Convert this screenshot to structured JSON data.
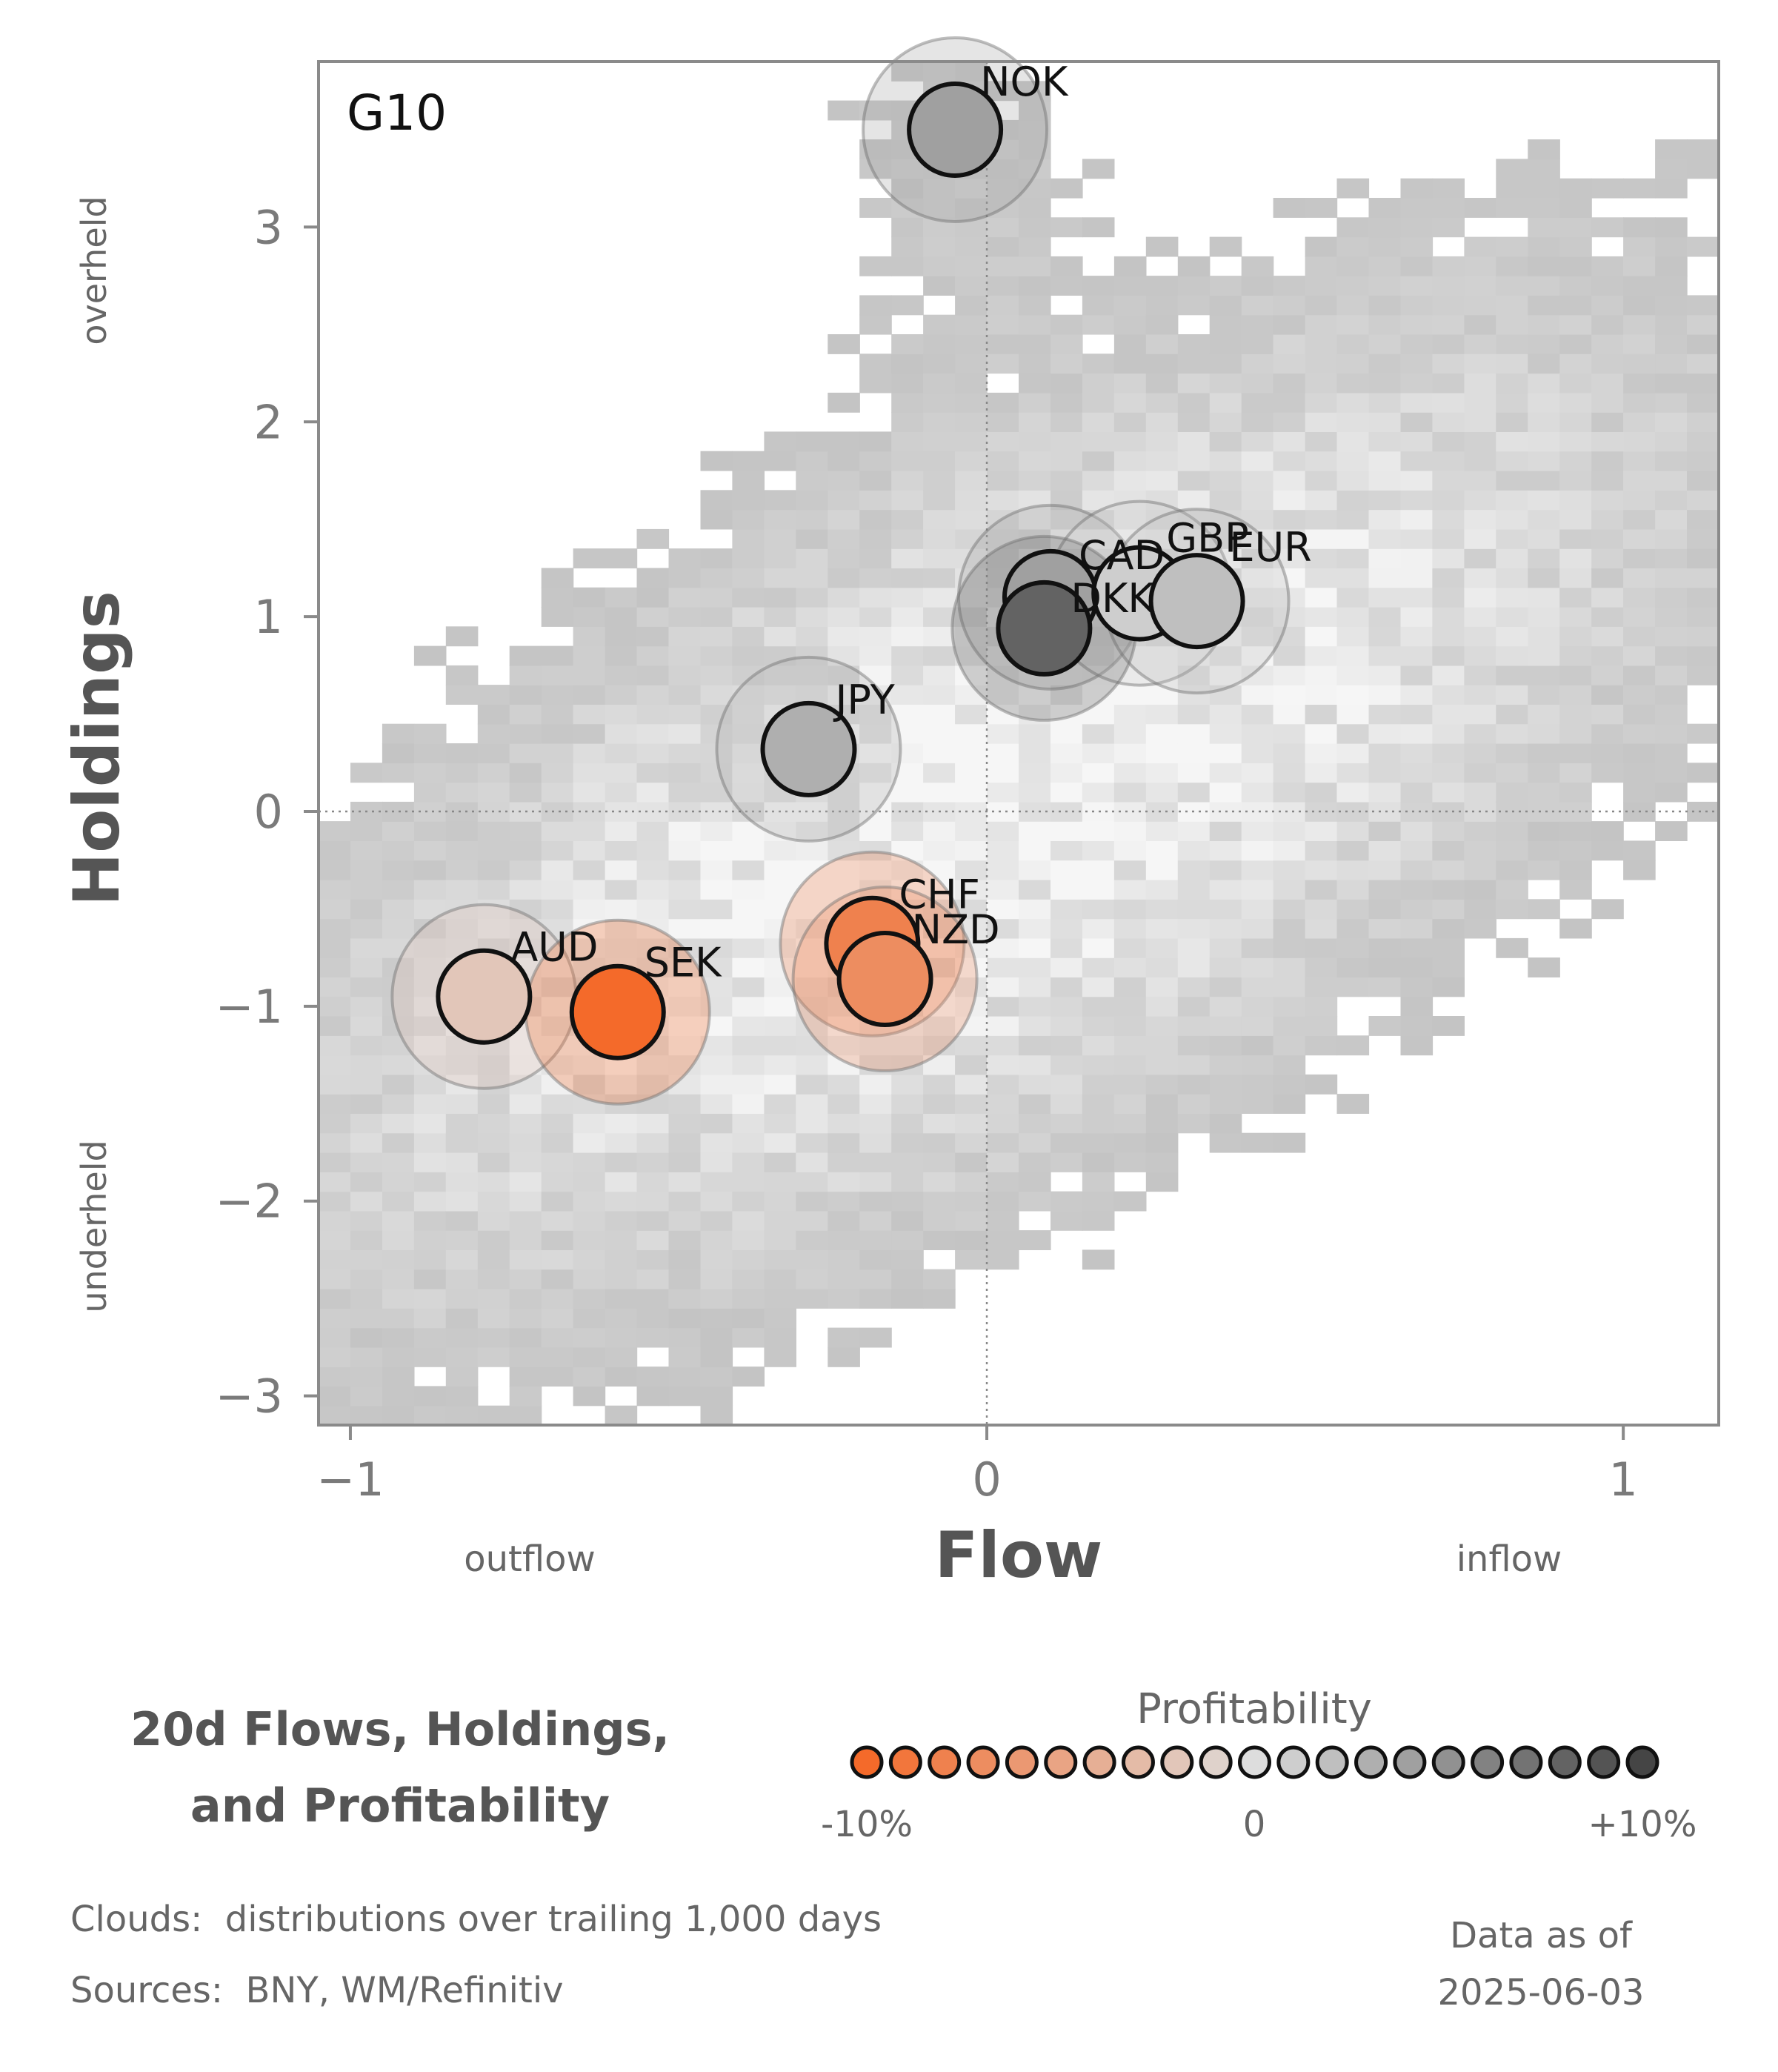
{
  "chart_data": {
    "type": "scatter",
    "panel_label": "G10",
    "xlabel": "Flow",
    "ylabel": "Holdings",
    "x_low_label": "outflow",
    "x_high_label": "inflow",
    "y_high_label": "overheld",
    "y_low_label": "underheld",
    "xlim": [
      -1.05,
      1.15
    ],
    "ylim": [
      -3.15,
      3.85
    ],
    "x_ticks": [
      {
        "value": -1,
        "label": "−1"
      },
      {
        "value": 0,
        "label": "0"
      },
      {
        "value": 1,
        "label": "1"
      }
    ],
    "y_ticks": [
      {
        "value": 3,
        "label": "3"
      },
      {
        "value": 2,
        "label": "2"
      },
      {
        "value": 1,
        "label": "1"
      },
      {
        "value": 0,
        "label": "0"
      },
      {
        "value": -1,
        "label": "−1"
      },
      {
        "value": -2,
        "label": "−2"
      },
      {
        "value": -3,
        "label": "−3"
      }
    ],
    "reference_lines": {
      "x": 0,
      "y": 0,
      "style": "dotted"
    },
    "background": "grey 2D histogram clouds of trailing distributions",
    "points": [
      {
        "label": "NOK",
        "flow": -0.05,
        "holdings": 3.5,
        "profitability": 4
      },
      {
        "label": "CAD",
        "flow": 0.1,
        "holdings": 1.1,
        "profitability": 4
      },
      {
        "label": "GBP",
        "flow": 0.24,
        "holdings": 1.12,
        "profitability": 1
      },
      {
        "label": "EUR",
        "flow": 0.33,
        "holdings": 1.08,
        "profitability": 2
      },
      {
        "label": "DKK",
        "flow": 0.09,
        "holdings": 0.94,
        "profitability": 8
      },
      {
        "label": "JPY",
        "flow": -0.28,
        "holdings": 0.32,
        "profitability": 3
      },
      {
        "label": "CHF",
        "flow": -0.18,
        "holdings": -0.68,
        "profitability": -8
      },
      {
        "label": "NZD",
        "flow": -0.16,
        "holdings": -0.86,
        "profitability": -7
      },
      {
        "label": "AUD",
        "flow": -0.79,
        "holdings": -0.95,
        "profitability": -2
      },
      {
        "label": "SEK",
        "flow": -0.58,
        "holdings": -1.03,
        "profitability": -10
      }
    ],
    "colorbar": {
      "title": "Profitability",
      "min_label": "-10%",
      "mid_label": "0",
      "max_label": "+10%",
      "min": -10,
      "max": 10,
      "colors": {
        "low": "#f46a2a",
        "mid": "#dddddd",
        "high": "#454545"
      }
    }
  },
  "footer": {
    "title_line1": "20d Flows, Holdings,",
    "title_line2": "and Profitability",
    "clouds_note": "Clouds:  distributions over trailing 1,000 days",
    "sources_note": "Sources:  BNY, WM/Refinitiv",
    "asof_label": "Data as of",
    "asof_date": "2025-06-03"
  }
}
